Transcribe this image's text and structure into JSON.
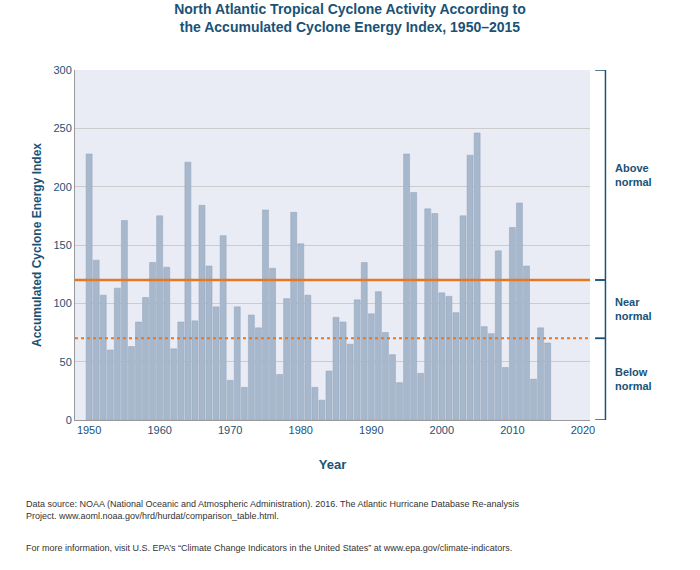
{
  "chart_data": {
    "type": "bar",
    "title": "North Atlantic Tropical Cyclone Activity According to\nthe Accumulated Cyclone Energy Index, 1950–2015",
    "xlabel": "Year",
    "ylabel": "Accumulated Cyclone Energy Index",
    "x": [
      1950,
      1951,
      1952,
      1953,
      1954,
      1955,
      1956,
      1957,
      1958,
      1959,
      1960,
      1961,
      1962,
      1963,
      1964,
      1965,
      1966,
      1967,
      1968,
      1969,
      1970,
      1971,
      1972,
      1973,
      1974,
      1975,
      1976,
      1977,
      1978,
      1979,
      1980,
      1981,
      1982,
      1983,
      1984,
      1985,
      1986,
      1987,
      1988,
      1989,
      1990,
      1991,
      1992,
      1993,
      1994,
      1995,
      1996,
      1997,
      1998,
      1999,
      2000,
      2001,
      2002,
      2003,
      2004,
      2005,
      2006,
      2007,
      2008,
      2009,
      2010,
      2011,
      2012,
      2013,
      2014,
      2015
    ],
    "values": [
      228,
      137,
      107,
      60,
      113,
      171,
      63,
      84,
      105,
      135,
      175,
      131,
      61,
      84,
      221,
      85,
      184,
      132,
      97,
      158,
      34,
      97,
      28,
      90,
      79,
      180,
      130,
      39,
      104,
      178,
      151,
      107,
      28,
      17,
      42,
      88,
      84,
      65,
      103,
      135,
      91,
      110,
      75,
      56,
      32,
      228,
      195,
      40,
      181,
      177,
      109,
      106,
      92,
      175,
      227,
      246,
      80,
      74,
      145,
      45,
      165,
      186,
      132,
      35,
      79,
      66
    ],
    "color": "#a8b8cc",
    "xlim": [
      1948,
      2021
    ],
    "xticks": [
      1950,
      1960,
      1970,
      1980,
      1990,
      2000,
      2010,
      2020
    ],
    "ylim": [
      0,
      300
    ],
    "yticks": [
      0,
      50,
      100,
      150,
      200,
      250,
      300
    ],
    "grid": "y",
    "lines": [
      {
        "value": 120,
        "color": "#e87722",
        "line_style": "solid"
      },
      {
        "value": 70,
        "color": "#e87722",
        "line_style": "dotted"
      }
    ],
    "bands": [
      {
        "from": 120,
        "to": 300,
        "label": "Above\nnormal"
      },
      {
        "from": 70,
        "to": 120,
        "label": "Near\nnormal"
      },
      {
        "from": 0,
        "to": 70,
        "label": "Below\nnormal"
      }
    ],
    "annotations": [
      "Data source: NOAA (National Oceanic and Atmospheric Administration). 2016. The Atlantic Hurricane Database Re-analysis\nProject. www.aoml.noaa.gov/hrd/hurdat/comparison_table.html.",
      "For more information, visit U.S. EPA’s “Climate Change Indicators in the United States” at www.epa.gov/climate-indicators."
    ]
  }
}
